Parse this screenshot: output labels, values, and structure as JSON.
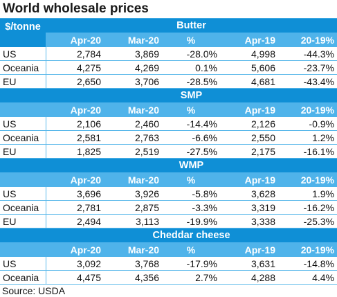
{
  "title": "World wholesale prices",
  "unit": "$/tonne",
  "columns": [
    "Apr-20",
    "Mar-20",
    "%",
    "Apr-19",
    "20-19%"
  ],
  "sections": [
    {
      "name": "Butter",
      "rows": [
        {
          "region": "US",
          "cells": [
            "2,784",
            "3,869",
            "-28.0%",
            "4,998",
            "-44.3%"
          ]
        },
        {
          "region": "Oceania",
          "cells": [
            "4,275",
            "4,269",
            "0.1%",
            "5,606",
            "-23.7%"
          ]
        },
        {
          "region": "EU",
          "cells": [
            "2,650",
            "3,706",
            "-28.5%",
            "4,681",
            "-43.4%"
          ]
        }
      ]
    },
    {
      "name": "SMP",
      "rows": [
        {
          "region": "US",
          "cells": [
            "2,106",
            "2,460",
            "-14.4%",
            "2,126",
            "-0.9%"
          ]
        },
        {
          "region": "Oceania",
          "cells": [
            "2,581",
            "2,763",
            "-6.6%",
            "2,550",
            "1.2%"
          ]
        },
        {
          "region": "EU",
          "cells": [
            "1,825",
            "2,519",
            "-27.5%",
            "2,175",
            "-16.1%"
          ]
        }
      ]
    },
    {
      "name": "WMP",
      "rows": [
        {
          "region": "US",
          "cells": [
            "3,696",
            "3,926",
            "-5.8%",
            "3,628",
            "1.9%"
          ]
        },
        {
          "region": "Oceania",
          "cells": [
            "2,781",
            "2,875",
            "-3.3%",
            "3,319",
            "-16.2%"
          ]
        },
        {
          "region": "EU",
          "cells": [
            "2,494",
            "3,113",
            "-19.9%",
            "3,338",
            "-25.3%"
          ]
        }
      ]
    },
    {
      "name": "Cheddar cheese",
      "rows": [
        {
          "region": "US",
          "cells": [
            "3,092",
            "3,768",
            "-17.9%",
            "3,631",
            "-14.8%"
          ]
        },
        {
          "region": "Oceania",
          "cells": [
            "4,475",
            "4,356",
            "2.7%",
            "4,288",
            "4.4%"
          ]
        }
      ]
    }
  ],
  "source": "Source: USDA",
  "colors": {
    "header_dark": "#0f8fd6",
    "header_light": "#4fb3ea",
    "grid": "#5ab8ea"
  }
}
